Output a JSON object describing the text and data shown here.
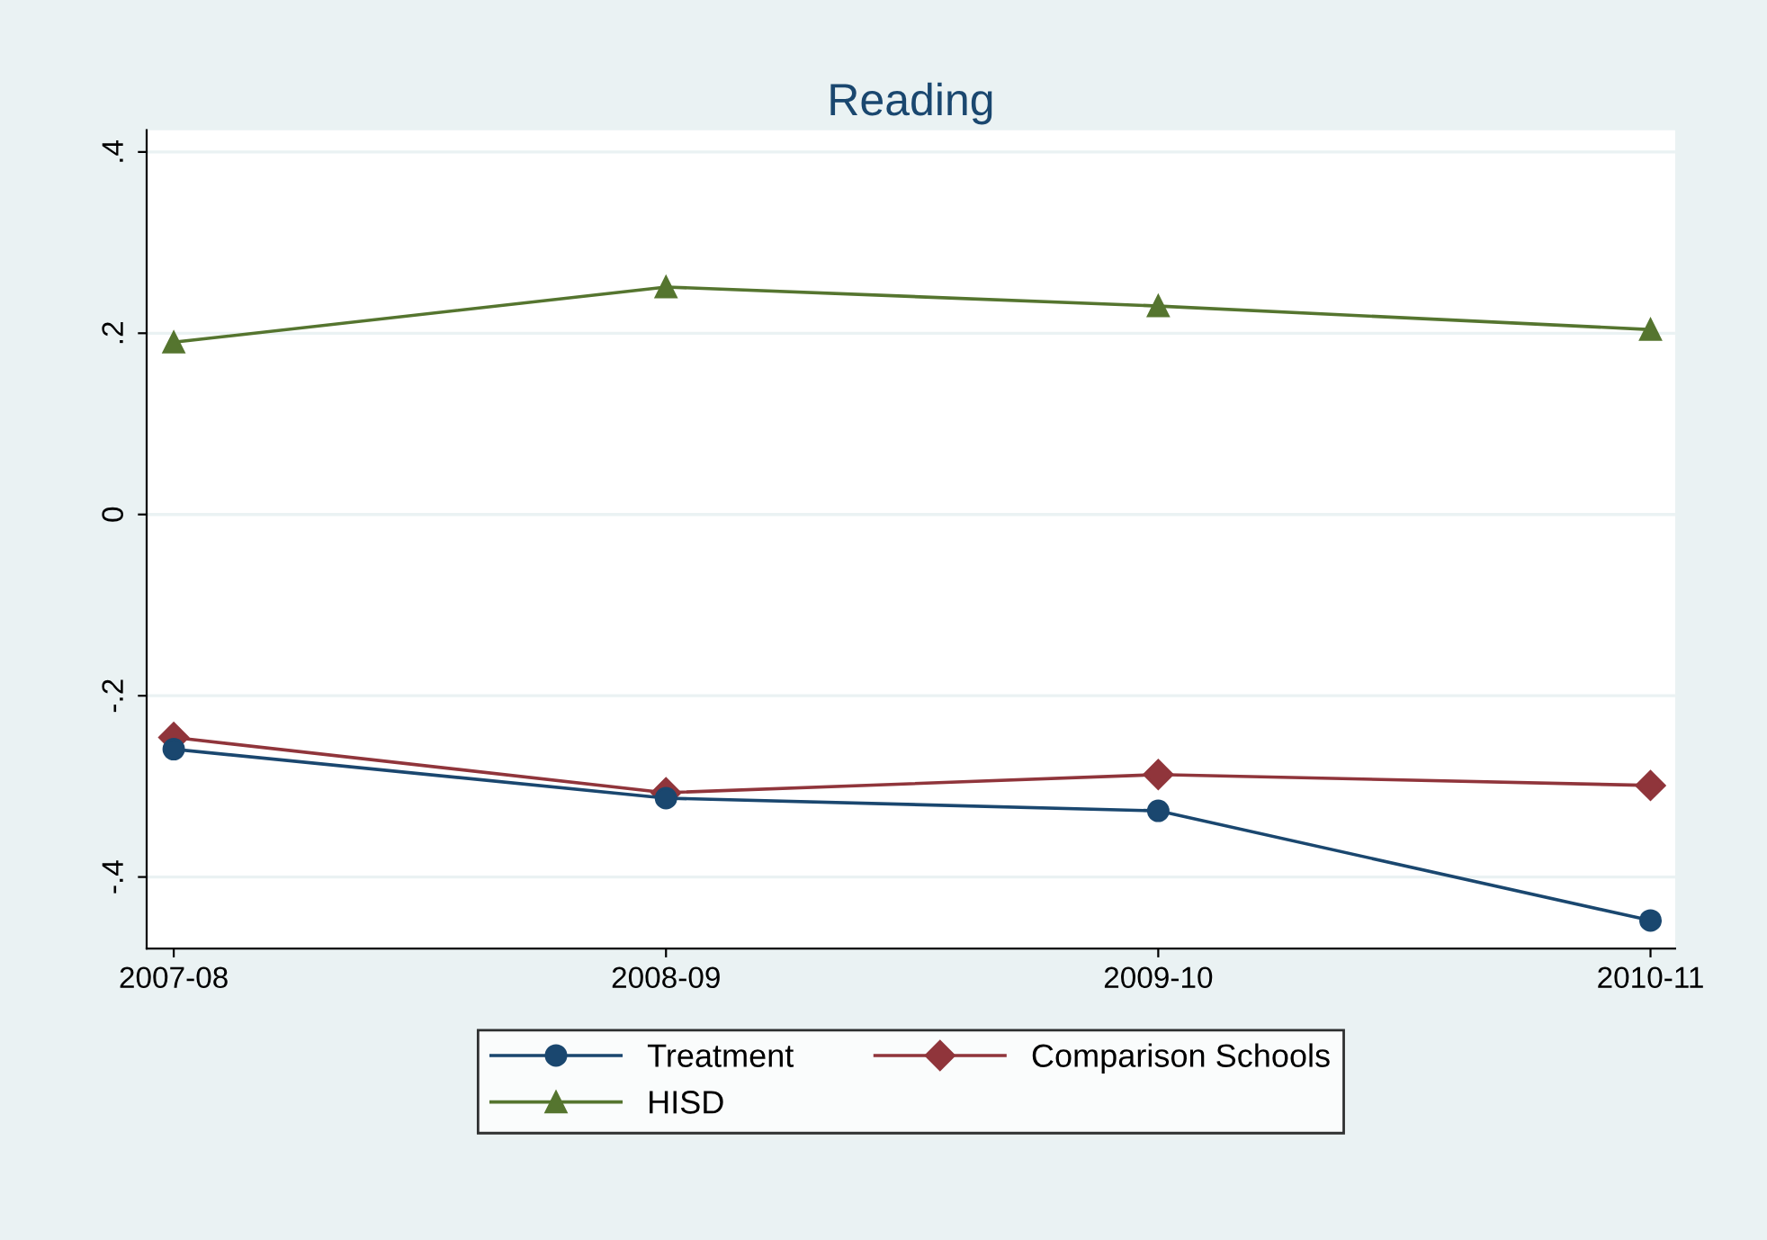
{
  "chart_data": {
    "type": "line",
    "title": "Reading",
    "categories": [
      "2007-08",
      "2008-09",
      "2009-10",
      "2010-11"
    ],
    "series": [
      {
        "name": "Treatment",
        "color": "#1a476f",
        "marker": "circle",
        "values": [
          -0.259,
          -0.313,
          -0.327,
          -0.448
        ]
      },
      {
        "name": "Comparison Schools",
        "color": "#90353b",
        "marker": "diamond",
        "values": [
          -0.246,
          -0.307,
          -0.287,
          -0.299
        ]
      },
      {
        "name": "HISD",
        "color": "#55752f",
        "marker": "triangle",
        "values": [
          0.19,
          0.251,
          0.23,
          0.204
        ]
      }
    ],
    "ylim": [
      -0.479,
      0.424
    ],
    "yticks": [
      {
        "value": -0.4,
        "label": "-.4"
      },
      {
        "value": -0.2,
        "label": "-.2"
      },
      0,
      {
        "value": 0.2,
        "label": ".2"
      },
      {
        "value": 0.4,
        "label": ".4"
      }
    ],
    "grid": "y",
    "legend": "bottom",
    "line_style": "solid"
  }
}
